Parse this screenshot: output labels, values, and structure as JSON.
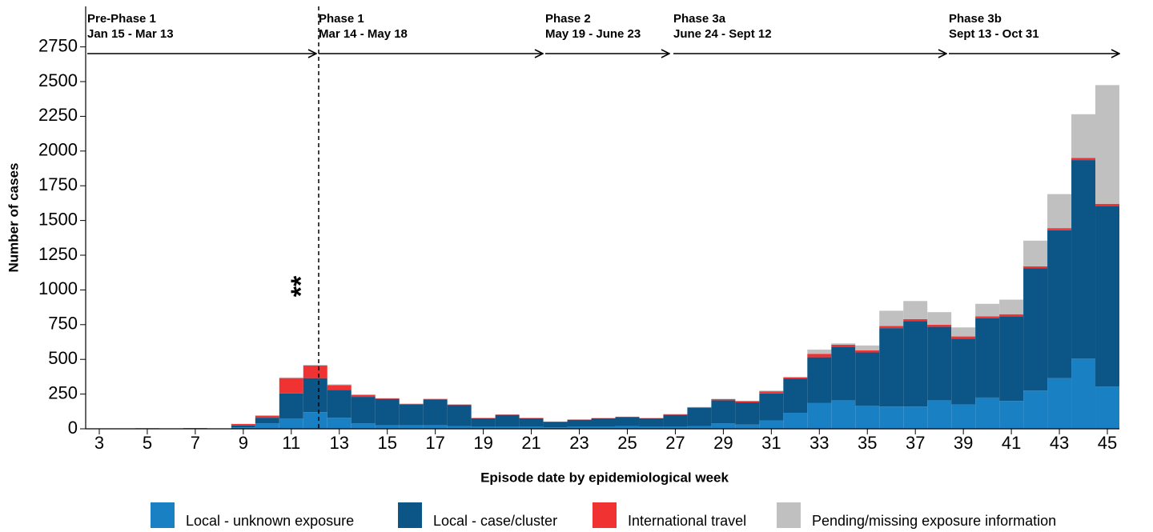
{
  "chart_data": {
    "type": "stacked-histogram",
    "xlabel": "Episode date by epidemiological week",
    "ylabel": "Number of cases",
    "x": [
      3,
      4,
      5,
      6,
      7,
      8,
      9,
      10,
      11,
      12,
      13,
      14,
      15,
      16,
      17,
      18,
      19,
      20,
      21,
      22,
      23,
      24,
      25,
      26,
      27,
      28,
      29,
      30,
      31,
      32,
      33,
      34,
      35,
      36,
      37,
      38,
      39,
      40,
      41,
      42,
      43,
      44,
      45
    ],
    "xlim": [
      2.5,
      45.5
    ],
    "xticks": [
      3,
      5,
      7,
      9,
      11,
      13,
      15,
      17,
      19,
      21,
      23,
      25,
      27,
      29,
      31,
      33,
      35,
      37,
      39,
      41,
      43,
      45
    ],
    "ylim": [
      0,
      3030
    ],
    "yticks": [
      0,
      250,
      500,
      750,
      1000,
      1250,
      1500,
      1750,
      2000,
      2250,
      2500,
      2750
    ],
    "series": [
      {
        "name": "Local - unknown exposure",
        "color": "#1a80c4",
        "values": [
          0,
          0,
          1,
          0,
          1,
          0,
          10,
          40,
          75,
          120,
          80,
          40,
          25,
          25,
          25,
          20,
          15,
          15,
          15,
          10,
          15,
          15,
          20,
          15,
          15,
          20,
          40,
          30,
          60,
          115,
          185,
          205,
          165,
          160,
          160,
          205,
          175,
          225,
          200,
          275,
          365,
          505,
          305
        ]
      },
      {
        "name": "Local - case/cluster",
        "color": "#0b5686",
        "values": [
          0,
          0,
          1,
          0,
          1,
          1,
          15,
          40,
          180,
          245,
          200,
          190,
          190,
          150,
          185,
          150,
          60,
          85,
          60,
          40,
          50,
          60,
          65,
          60,
          85,
          130,
          165,
          160,
          195,
          245,
          330,
          385,
          385,
          565,
          615,
          530,
          475,
          570,
          610,
          880,
          1065,
          1430,
          1300
        ]
      },
      {
        "name": "International travel",
        "color": "#f03232",
        "values": [
          1,
          1,
          2,
          1,
          3,
          2,
          10,
          15,
          110,
          90,
          35,
          15,
          5,
          5,
          5,
          5,
          3,
          3,
          3,
          2,
          2,
          2,
          2,
          2,
          5,
          5,
          8,
          10,
          15,
          10,
          25,
          15,
          15,
          15,
          15,
          15,
          15,
          15,
          15,
          15,
          15,
          15,
          15
        ]
      },
      {
        "name": "Pending/missing exposure information",
        "color": "#c0c0c0",
        "values": [
          0,
          0,
          0,
          0,
          0,
          0,
          0,
          0,
          5,
          5,
          5,
          0,
          0,
          0,
          0,
          0,
          0,
          0,
          0,
          0,
          0,
          0,
          0,
          0,
          2,
          2,
          3,
          0,
          5,
          5,
          30,
          10,
          35,
          110,
          130,
          90,
          65,
          90,
          105,
          185,
          245,
          315,
          855
        ]
      }
    ],
    "phases": [
      {
        "name": "Pre-Phase 1",
        "dates": "Jan 15 - Mar 13"
      },
      {
        "name": "Phase 1",
        "dates": "Mar 14 - May 18"
      },
      {
        "name": "Phase 2",
        "dates": "May 19 - June 23"
      },
      {
        "name": "Phase 3a",
        "dates": "June 24 - Sept 12"
      },
      {
        "name": "Phase 3b",
        "dates": "Sept 13 - Oct 31"
      }
    ],
    "annotation": "**"
  }
}
